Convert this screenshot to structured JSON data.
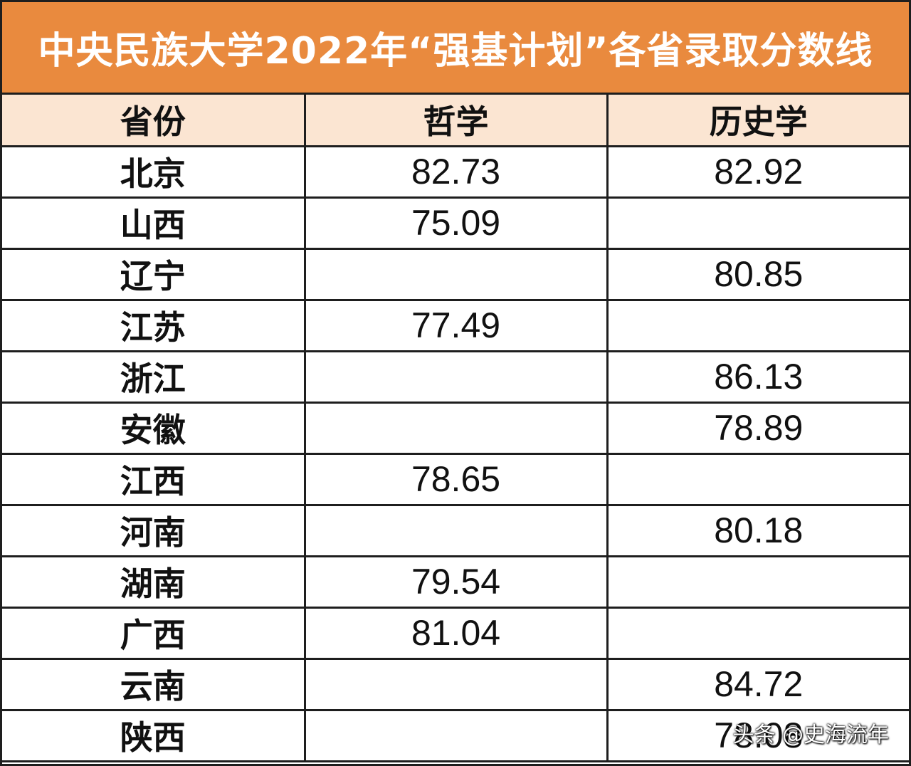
{
  "title": "中央民族大学2022年“强基计划”各省录取分数线",
  "headers": [
    "省份",
    "哲学",
    "历史学"
  ],
  "rows": [
    {
      "province": "北京",
      "philosophy": "82.73",
      "history": "82.92"
    },
    {
      "province": "山西",
      "philosophy": "75.09",
      "history": ""
    },
    {
      "province": "辽宁",
      "philosophy": "",
      "history": "80.85"
    },
    {
      "province": "江苏",
      "philosophy": "77.49",
      "history": ""
    },
    {
      "province": "浙江",
      "philosophy": "",
      "history": "86.13"
    },
    {
      "province": "安徽",
      "philosophy": "",
      "history": "78.89"
    },
    {
      "province": "江西",
      "philosophy": "78.65",
      "history": ""
    },
    {
      "province": "河南",
      "philosophy": "",
      "history": "80.18"
    },
    {
      "province": "湖南",
      "philosophy": "79.54",
      "history": ""
    },
    {
      "province": "广西",
      "philosophy": "81.04",
      "history": ""
    },
    {
      "province": "云南",
      "philosophy": "",
      "history": "84.72"
    },
    {
      "province": "陕西",
      "philosophy": "",
      "history": "78.08"
    }
  ],
  "watermark": "头条 @史海流年",
  "colors": {
    "title_background": "#e98a3e",
    "header_background": "#fbe5d2",
    "grid_lines": "#1e1e1e"
  }
}
